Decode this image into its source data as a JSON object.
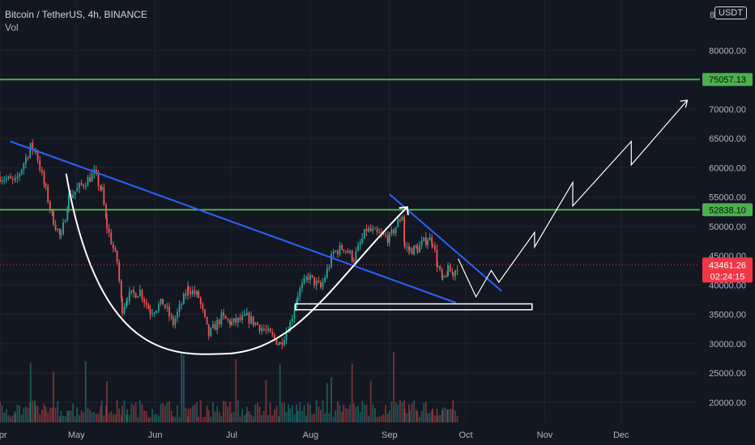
{
  "header": {
    "symbol": "Bitcoin / TetherUS, 4h, BINANCE",
    "indicator": "Vol"
  },
  "axis_badge": {
    "unit": "USDT",
    "partial_top_tick": "8"
  },
  "colors": {
    "background": "#131722",
    "up": "#26a69a",
    "down": "#ef5350",
    "level_line": "#4caf50",
    "trend_line": "#2962ff",
    "drawing": "#ffffff",
    "current_price": "#f23645"
  },
  "chart_data": {
    "type": "candlestick",
    "symbol": "BTC/USDT",
    "interval": "4h",
    "exchange": "BINANCE",
    "ylim": [
      15500,
      87500
    ],
    "y_ticks": [
      20000,
      25000,
      30000,
      35000,
      40000,
      45000,
      50000,
      55000,
      60000,
      65000,
      70000,
      75000,
      80000
    ],
    "y_tick_labels": [
      "20000.00",
      "25000.00",
      "30000.00",
      "35000.00",
      "40000.00",
      "45000.00",
      "50000.00",
      "55000.00",
      "60000.00",
      "65000.00",
      "70000.00",
      "75000.00",
      "80000.00"
    ],
    "x_range": [
      "2021-04-01",
      "2021-12-31"
    ],
    "x_ticks": [
      {
        "label": "Apr",
        "date": "2021-04-01"
      },
      {
        "label": "May",
        "date": "2021-05-01"
      },
      {
        "label": "Jun",
        "date": "2021-06-01"
      },
      {
        "label": "Jul",
        "date": "2021-07-01"
      },
      {
        "label": "Aug",
        "date": "2021-08-01"
      },
      {
        "label": "Sep",
        "date": "2021-09-01"
      },
      {
        "label": "Oct",
        "date": "2021-10-01"
      },
      {
        "label": "Nov",
        "date": "2021-11-01"
      },
      {
        "label": "Dec",
        "date": "2021-12-01"
      }
    ],
    "price_path": [
      [
        "2021-04-01",
        58500
      ],
      [
        "2021-04-07",
        57500
      ],
      [
        "2021-04-13",
        63500
      ],
      [
        "2021-04-15",
        63000
      ],
      [
        "2021-04-19",
        56000
      ],
      [
        "2021-04-22",
        51000
      ],
      [
        "2021-04-25",
        48000
      ],
      [
        "2021-04-28",
        55000
      ],
      [
        "2021-05-03",
        57000
      ],
      [
        "2021-05-08",
        59000
      ],
      [
        "2021-05-11",
        56000
      ],
      [
        "2021-05-13",
        50000
      ],
      [
        "2021-05-17",
        44000
      ],
      [
        "2021-05-19",
        36000
      ],
      [
        "2021-05-21",
        38000
      ],
      [
        "2021-05-26",
        39000
      ],
      [
        "2021-05-30",
        35500
      ],
      [
        "2021-06-04",
        37000
      ],
      [
        "2021-06-08",
        33500
      ],
      [
        "2021-06-14",
        39500
      ],
      [
        "2021-06-18",
        38000
      ],
      [
        "2021-06-22",
        31500
      ],
      [
        "2021-06-27",
        34500
      ],
      [
        "2021-07-01",
        33500
      ],
      [
        "2021-07-07",
        34500
      ],
      [
        "2021-07-12",
        33000
      ],
      [
        "2021-07-20",
        30000
      ],
      [
        "2021-07-24",
        33500
      ],
      [
        "2021-07-27",
        38500
      ],
      [
        "2021-07-31",
        41500
      ],
      [
        "2021-08-05",
        39500
      ],
      [
        "2021-08-10",
        45500
      ],
      [
        "2021-08-14",
        46500
      ],
      [
        "2021-08-18",
        44500
      ],
      [
        "2021-08-23",
        49500
      ],
      [
        "2021-08-28",
        48500
      ],
      [
        "2021-09-01",
        48000
      ],
      [
        "2021-09-06",
        52000
      ],
      [
        "2021-09-07",
        46500
      ],
      [
        "2021-09-09",
        46000
      ],
      [
        "2021-09-12",
        46200
      ],
      [
        "2021-09-16",
        48000
      ],
      [
        "2021-09-18",
        47500
      ],
      [
        "2021-09-20",
        43000
      ],
      [
        "2021-09-22",
        40500
      ],
      [
        "2021-09-24",
        42500
      ],
      [
        "2021-09-26",
        42000
      ],
      [
        "2021-09-28",
        43461
      ]
    ],
    "volume_baseline": 15500,
    "horizontal_levels": [
      {
        "value": 75057.13,
        "label": "75057.13",
        "color": "#4caf50"
      },
      {
        "value": 52838.1,
        "label": "52838.10",
        "color": "#4caf50"
      }
    ],
    "current_price": {
      "value": 43461.26,
      "label": "43461.26",
      "countdown": "02:24:15"
    },
    "trend_lines": [
      {
        "points": [
          [
            "2021-04-05",
            64500
          ],
          [
            "2021-09-27",
            37000
          ]
        ],
        "color": "#2962ff"
      },
      {
        "points": [
          [
            "2021-09-01",
            55500
          ],
          [
            "2021-10-15",
            39000
          ]
        ],
        "color": "#2962ff"
      }
    ],
    "support_zone": {
      "from": "2021-07-26",
      "to": "2021-10-27",
      "top": 36800,
      "bottom": 35800
    },
    "cup_arc": {
      "start": [
        "2021-04-27",
        59000
      ],
      "bottom": [
        "2021-06-28",
        28300
      ],
      "end": [
        "2021-09-08",
        53300
      ]
    },
    "projection_path": [
      [
        "2021-09-28",
        44500
      ],
      [
        "2021-10-05",
        38000
      ],
      [
        "2021-10-11",
        42500
      ],
      [
        "2021-10-14",
        40500
      ],
      [
        "2021-10-28",
        49000
      ],
      [
        "2021-10-28",
        46500
      ],
      [
        "2021-11-12",
        57500
      ],
      [
        "2021-11-12",
        53500
      ],
      [
        "2021-12-05",
        64500
      ],
      [
        "2021-12-05",
        60500
      ],
      [
        "2021-12-27",
        71500
      ]
    ]
  }
}
